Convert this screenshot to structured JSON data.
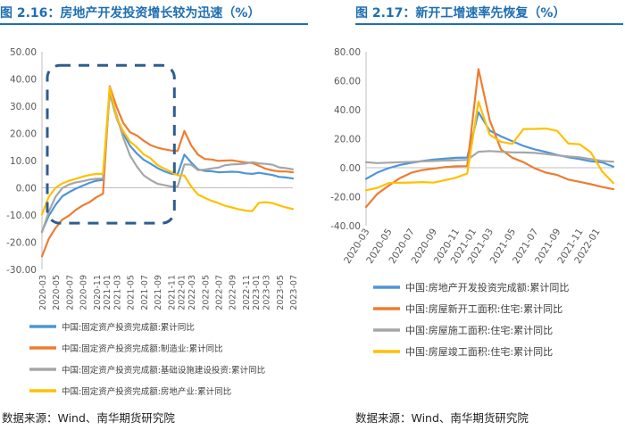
{
  "left": {
    "title": "图 2.16：房地产开发投资增长较为迅速（%）",
    "source": "数据来源：Wind、南华期货研究院"
  },
  "right": {
    "title": "图 2.17：新开工增速率先恢复（%）",
    "source": "数据来源：Wind、南华期货研究院"
  },
  "colors": {
    "title": "#1f6fb2",
    "blue": "#4e95d9",
    "orange": "#ed7d31",
    "gray": "#a6a6a6",
    "yellow": "#ffc000",
    "highlight": "#2e5d8e"
  },
  "chart_data": [
    {
      "type": "line",
      "title": "房地产开发投资增长较为迅速（%）",
      "x": [
        "2020-03",
        "2020-04",
        "2020-05",
        "2020-06",
        "2020-07",
        "2020-08",
        "2020-09",
        "2020-10",
        "2020-11",
        "2020-12",
        "2021-02",
        "2021-03",
        "2021-04",
        "2021-05",
        "2021-06",
        "2021-07",
        "2021-08",
        "2021-09",
        "2021-10",
        "2021-11",
        "2021-12",
        "2022-02",
        "2022-03",
        "2022-04",
        "2022-05",
        "2022-06",
        "2022-07",
        "2022-08",
        "2022-09",
        "2022-10",
        "2022-11",
        "2022-12",
        "2023-02",
        "2023-03",
        "2023-04",
        "2023-05",
        "2023-06",
        "2023-07"
      ],
      "x_tick_labels": [
        "2020-03",
        "2020-05",
        "2020-07",
        "2020-09",
        "2020-11",
        "2021-01",
        "2021-03",
        "2021-05",
        "2021-07",
        "2021-09",
        "2021-11",
        "2022-01",
        "2022-03",
        "2022-05",
        "2022-07",
        "2022-09",
        "2022-11",
        "2023-01",
        "2023-03",
        "2023-05",
        "2023-07"
      ],
      "y_ticks": [
        "50.00",
        "40.00",
        "30.00",
        "20.00",
        "10.00",
        "0.00",
        "-10.00",
        "-20.00",
        "-30.00"
      ],
      "ylim": [
        -30,
        50
      ],
      "series": [
        {
          "name": "中国:固定资产投资完成额:累计同比",
          "color": "#4e95d9",
          "values": [
            -16.1,
            -10.3,
            -6.3,
            -3.1,
            -1.6,
            -0.3,
            0.8,
            1.8,
            2.6,
            2.9,
            35.0,
            25.6,
            19.9,
            15.4,
            12.6,
            10.3,
            8.9,
            7.3,
            6.1,
            5.2,
            4.9,
            12.2,
            9.3,
            6.8,
            6.2,
            6.1,
            5.7,
            5.8,
            5.9,
            5.8,
            5.3,
            5.1,
            5.5,
            5.1,
            4.7,
            4.0,
            3.8,
            3.4
          ]
        },
        {
          "name": "中国:固定资产投资完成额:制造业:累计同比",
          "color": "#ed7d31",
          "values": [
            -25.2,
            -18.8,
            -14.8,
            -11.7,
            -10.2,
            -8.1,
            -6.5,
            -5.3,
            -3.5,
            -2.2,
            37.3,
            29.8,
            23.8,
            20.4,
            19.2,
            17.3,
            15.7,
            14.8,
            14.2,
            13.7,
            13.5,
            20.9,
            15.6,
            12.2,
            10.6,
            10.4,
            9.9,
            10.0,
            10.1,
            9.7,
            9.3,
            9.1,
            8.1,
            7.0,
            6.4,
            6.0,
            6.0,
            5.7
          ]
        },
        {
          "name": "中国:固定资产投资完成额:基础设施建设投资:累计同比",
          "color": "#a6a6a6",
          "values": [
            -16.4,
            -8.8,
            -3.3,
            -0.1,
            1.2,
            2.0,
            2.4,
            3.0,
            3.3,
            3.4,
            35.0,
            26.8,
            18.4,
            11.8,
            7.8,
            4.6,
            2.9,
            1.5,
            1.0,
            0.5,
            0.4,
            8.6,
            8.5,
            6.5,
            6.7,
            7.1,
            7.4,
            8.3,
            8.6,
            8.7,
            8.9,
            9.4,
            9.0,
            8.8,
            8.5,
            7.5,
            7.2,
            6.8
          ]
        },
        {
          "name": "中国:固定资产投资完成额:房地产业:累计同比",
          "color": "#ffc000",
          "values": [
            -9.8,
            -3.3,
            0.0,
            1.6,
            2.6,
            3.3,
            4.1,
            4.7,
            5.1,
            5.1,
            37.0,
            25.8,
            20.8,
            17.0,
            14.9,
            12.3,
            10.9,
            8.4,
            7.1,
            5.9,
            4.6,
            4.5,
            0.5,
            -2.5,
            -3.7,
            -4.8,
            -5.6,
            -6.6,
            -7.2,
            -7.9,
            -8.4,
            -8.6,
            -5.5,
            -5.3,
            -5.6,
            -6.5,
            -7.2,
            -7.8
          ]
        }
      ]
    },
    {
      "type": "line",
      "title": "新开工增速率先恢复（%）",
      "x": [
        "2020-03",
        "2020-04",
        "2020-05",
        "2020-06",
        "2020-07",
        "2020-08",
        "2020-09",
        "2020-10",
        "2020-11",
        "2020-12",
        "2021-02",
        "2021-03",
        "2021-04",
        "2021-05",
        "2021-06",
        "2021-07",
        "2021-08",
        "2021-09",
        "2021-10",
        "2021-11",
        "2021-12",
        "2022-02",
        "2022-03"
      ],
      "x_tick_labels": [
        "2020-03",
        "2020-05",
        "2020-07",
        "2020-09",
        "2020-11",
        "2021-01",
        "2021-03",
        "2021-05",
        "2021-07",
        "2021-09",
        "2021-11",
        "2022-01"
      ],
      "y_ticks": [
        "80.00",
        "60.00",
        "40.00",
        "20.00",
        "0.00",
        "-20.00",
        "-40.00"
      ],
      "ylim": [
        -40,
        80
      ],
      "series": [
        {
          "name": "中国:房地产开发投资完成额:累计同比",
          "color": "#4e95d9",
          "values": [
            -7.7,
            -3.3,
            -0.3,
            1.9,
            3.4,
            4.6,
            5.6,
            6.3,
            6.8,
            7.0,
            38.3,
            25.6,
            21.6,
            18.3,
            15.0,
            12.7,
            10.9,
            8.8,
            7.2,
            6.0,
            4.4,
            3.7,
            0.7
          ]
        },
        {
          "name": "中国:房屋新开工面积:住宅:累计同比",
          "color": "#ed7d31",
          "values": [
            -27.1,
            -18.0,
            -12.4,
            -7.2,
            -3.5,
            -1.6,
            -0.6,
            0.4,
            1.0,
            1.1,
            68.0,
            32.8,
            12.6,
            6.9,
            3.8,
            -0.4,
            -3.4,
            -5.0,
            -8.2,
            -9.7,
            -11.4,
            -13.3,
            -14.8
          ]
        },
        {
          "name": "中国:房屋施工面积:住宅:累计同比",
          "color": "#a6a6a6",
          "values": [
            3.8,
            3.2,
            3.5,
            3.8,
            4.0,
            4.4,
            4.6,
            5.0,
            5.1,
            5.4,
            11.0,
            11.5,
            11.0,
            10.6,
            10.5,
            10.2,
            9.5,
            8.5,
            7.8,
            7.2,
            6.0,
            4.7,
            4.1
          ]
        },
        {
          "name": "中国:房屋竣工面积:住宅:累计同比",
          "color": "#ffc000",
          "values": [
            -15.6,
            -13.9,
            -10.6,
            -10.4,
            -10.2,
            -9.9,
            -10.3,
            -8.7,
            -6.9,
            -4.0,
            45.6,
            22.8,
            17.9,
            16.4,
            26.7,
            26.8,
            27.0,
            25.4,
            16.7,
            16.2,
            10.5,
            -2.6,
            -10.5
          ]
        }
      ]
    }
  ]
}
